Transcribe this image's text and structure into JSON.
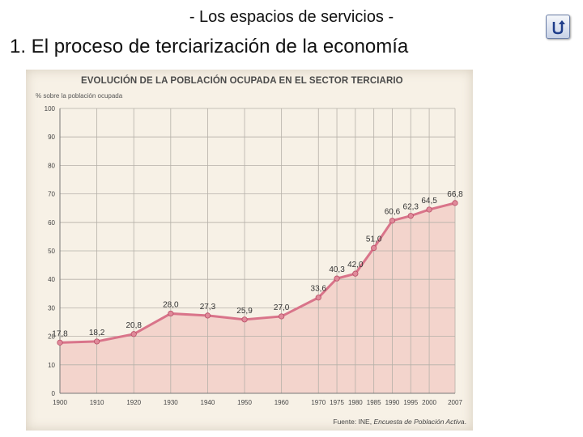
{
  "header": {
    "top_title": "- Los espacios de servicios -",
    "heading": "1. El proceso de terciarización de la economía",
    "nav_icon": "return-arrow-icon"
  },
  "chart_data": {
    "type": "area",
    "title": "EVOLUCIÓN DE LA POBLACIÓN OCUPADA EN EL SECTOR TERCIARIO",
    "ylabel": "% sobre la población ocupada",
    "xlabel": "",
    "x": [
      "1900",
      "1910",
      "1920",
      "1930",
      "1940",
      "1950",
      "1960",
      "1970",
      "1975",
      "1980",
      "1985",
      "1990",
      "1995",
      "2000",
      "2007"
    ],
    "values": [
      17.8,
      18.2,
      20.8,
      28.0,
      27.3,
      25.9,
      27.0,
      33.6,
      40.3,
      42.0,
      51.0,
      60.6,
      62.3,
      64.5,
      66.8
    ],
    "value_labels": [
      "17,8",
      "18,2",
      "20,8",
      "28,0",
      "27,3",
      "25,9",
      "27,0",
      "33,6",
      "40,3",
      "42,0",
      "51,0",
      "60,6",
      "62,3",
      "64,5",
      "66,8"
    ],
    "ylim": [
      0,
      100
    ],
    "yticks": [
      0,
      10,
      20,
      30,
      40,
      50,
      60,
      70,
      80,
      90,
      100
    ],
    "grid": true,
    "source": "Fuente: INE, ",
    "source_italic": "Encuesta de Población Activa",
    "source_end": ".",
    "colors": {
      "line": "#d9748a",
      "fill": "#f2c9c3",
      "marker": "#e08a9a",
      "grid": "#b5b0a8",
      "paper": "#f7f1e6"
    }
  }
}
